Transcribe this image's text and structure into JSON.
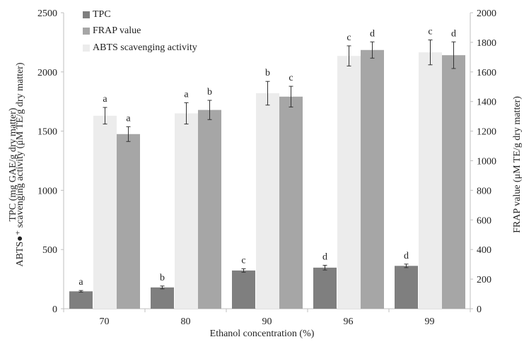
{
  "chart_data": {
    "type": "bar",
    "categories": [
      "70",
      "80",
      "90",
      "96",
      "99"
    ],
    "xlabel": "Ethanol concentration (%)",
    "ylabel_left_line1": "TPC (mg GAE/g dry matter)",
    "ylabel_left_line2": "ABTS●⁺ scavenging activity (μM TE/g dry matter)",
    "ylabel_right": "FRAP value (μM TE/g dry matter)",
    "ylim_left": [
      0,
      2500
    ],
    "ylim_right": [
      0,
      2000
    ],
    "yticks_left": [
      "0",
      "500",
      "1000",
      "1500",
      "2000",
      "2500"
    ],
    "yticks_right": [
      "0",
      "200",
      "400",
      "600",
      "800",
      "1000",
      "1200",
      "1400",
      "1600",
      "1800",
      "2000"
    ],
    "legend_position": "top-left",
    "grid": false,
    "series": [
      {
        "name": "TPC",
        "axis": "left",
        "color": "#7f7f7f",
        "values": [
          147,
          180,
          323,
          347,
          362
        ],
        "errors": [
          7,
          12,
          15,
          20,
          15
        ],
        "labels": [
          "a",
          "b",
          "c",
          "d",
          "d"
        ]
      },
      {
        "name": "ABTS scavenging activity",
        "axis": "left",
        "color": "#ececec",
        "values": [
          1630,
          1650,
          1820,
          2135,
          2165
        ],
        "errors": [
          70,
          90,
          100,
          85,
          105
        ],
        "labels": [
          "a",
          "a",
          "b",
          "c",
          "c"
        ]
      },
      {
        "name": "FRAP value",
        "axis": "right",
        "color": "#a6a6a6",
        "values": [
          1180,
          1343,
          1433,
          1748,
          1713
        ],
        "errors": [
          50,
          65,
          70,
          55,
          90
        ],
        "labels": [
          "a",
          "b",
          "c",
          "d",
          "d"
        ]
      }
    ],
    "legend": [
      "TPC",
      "FRAP value",
      "ABTS scavenging activity"
    ]
  }
}
